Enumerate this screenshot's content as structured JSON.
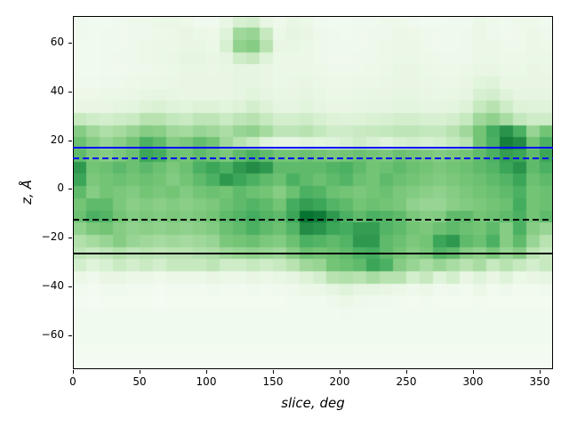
{
  "figure": {
    "background": "#ffffff"
  },
  "axes": {
    "xlabel": "slice, deg",
    "ylabel": "z, Å",
    "xlim": [
      0,
      360
    ],
    "ylim": [
      -74,
      71
    ],
    "xticks": [
      0,
      50,
      100,
      150,
      200,
      250,
      300,
      350
    ],
    "xtick_labels": [
      "0",
      "50",
      "100",
      "150",
      "200",
      "250",
      "300",
      "350"
    ],
    "yticks": [
      60,
      40,
      20,
      0,
      -20,
      -40,
      -60
    ],
    "ytick_labels": [
      "60",
      "40",
      "20",
      "0",
      "−20",
      "−40",
      "−60"
    ]
  },
  "chart_data": {
    "type": "heatmap",
    "title": "",
    "xlabel": "slice, deg",
    "ylabel": "z, Å",
    "colormap": "Greens",
    "grid": false,
    "legend": "none",
    "x_bins": 36,
    "x_range": [
      0,
      360
    ],
    "y_bins": 29,
    "y_range": [
      -74,
      71
    ],
    "values_note": "rows top(z=71) to bottom(z=-74), 36 columns x=0..360, normalized 0-1 intensity",
    "values": [
      [
        0.05,
        0.04,
        0.04,
        0.05,
        0.06,
        0.06,
        0.08,
        0.09,
        0.07,
        0.05,
        0.05,
        0.1,
        0.18,
        0.2,
        0.1,
        0.06,
        0.1,
        0.08,
        0.05,
        0.04,
        0.04,
        0.05,
        0.05,
        0.06,
        0.06,
        0.05,
        0.04,
        0.04,
        0.05,
        0.05,
        0.08,
        0.06,
        0.05,
        0.06,
        0.06,
        0.05
      ],
      [
        0.05,
        0.04,
        0.05,
        0.05,
        0.06,
        0.06,
        0.07,
        0.08,
        0.1,
        0.08,
        0.07,
        0.15,
        0.38,
        0.4,
        0.25,
        0.08,
        0.12,
        0.1,
        0.06,
        0.05,
        0.04,
        0.05,
        0.06,
        0.06,
        0.08,
        0.07,
        0.06,
        0.05,
        0.05,
        0.06,
        0.08,
        0.06,
        0.05,
        0.06,
        0.08,
        0.06
      ],
      [
        0.04,
        0.04,
        0.05,
        0.05,
        0.06,
        0.07,
        0.08,
        0.08,
        0.1,
        0.1,
        0.08,
        0.18,
        0.42,
        0.45,
        0.3,
        0.1,
        0.1,
        0.08,
        0.06,
        0.05,
        0.05,
        0.05,
        0.06,
        0.07,
        0.08,
        0.08,
        0.06,
        0.05,
        0.05,
        0.06,
        0.08,
        0.08,
        0.06,
        0.06,
        0.08,
        0.07
      ],
      [
        0.04,
        0.04,
        0.05,
        0.06,
        0.06,
        0.07,
        0.08,
        0.09,
        0.12,
        0.12,
        0.1,
        0.12,
        0.22,
        0.25,
        0.15,
        0.08,
        0.08,
        0.08,
        0.06,
        0.05,
        0.05,
        0.06,
        0.06,
        0.07,
        0.08,
        0.08,
        0.07,
        0.06,
        0.06,
        0.06,
        0.08,
        0.08,
        0.07,
        0.07,
        0.08,
        0.08
      ],
      [
        0.04,
        0.04,
        0.05,
        0.05,
        0.06,
        0.06,
        0.07,
        0.08,
        0.1,
        0.1,
        0.09,
        0.1,
        0.12,
        0.12,
        0.1,
        0.08,
        0.08,
        0.08,
        0.07,
        0.06,
        0.06,
        0.06,
        0.07,
        0.08,
        0.1,
        0.1,
        0.08,
        0.07,
        0.07,
        0.08,
        0.1,
        0.1,
        0.08,
        0.08,
        0.1,
        0.09
      ],
      [
        0.05,
        0.05,
        0.06,
        0.06,
        0.07,
        0.08,
        0.08,
        0.09,
        0.1,
        0.1,
        0.1,
        0.1,
        0.12,
        0.12,
        0.1,
        0.08,
        0.09,
        0.1,
        0.08,
        0.07,
        0.07,
        0.08,
        0.08,
        0.09,
        0.1,
        0.1,
        0.09,
        0.08,
        0.08,
        0.1,
        0.14,
        0.15,
        0.1,
        0.1,
        0.1,
        0.1
      ],
      [
        0.07,
        0.07,
        0.08,
        0.08,
        0.09,
        0.11,
        0.12,
        0.11,
        0.1,
        0.1,
        0.1,
        0.1,
        0.12,
        0.14,
        0.12,
        0.1,
        0.1,
        0.12,
        0.1,
        0.08,
        0.08,
        0.09,
        0.1,
        0.1,
        0.11,
        0.11,
        0.1,
        0.09,
        0.1,
        0.12,
        0.18,
        0.2,
        0.15,
        0.12,
        0.12,
        0.12
      ],
      [
        0.1,
        0.1,
        0.1,
        0.12,
        0.13,
        0.16,
        0.17,
        0.15,
        0.14,
        0.16,
        0.16,
        0.14,
        0.16,
        0.2,
        0.16,
        0.12,
        0.12,
        0.14,
        0.12,
        0.1,
        0.1,
        0.11,
        0.12,
        0.12,
        0.13,
        0.13,
        0.12,
        0.12,
        0.13,
        0.16,
        0.25,
        0.3,
        0.22,
        0.16,
        0.15,
        0.15
      ],
      [
        0.25,
        0.22,
        0.2,
        0.22,
        0.24,
        0.3,
        0.3,
        0.26,
        0.24,
        0.28,
        0.28,
        0.24,
        0.28,
        0.3,
        0.25,
        0.2,
        0.2,
        0.22,
        0.18,
        0.16,
        0.15,
        0.16,
        0.17,
        0.18,
        0.2,
        0.2,
        0.18,
        0.18,
        0.2,
        0.25,
        0.38,
        0.42,
        0.35,
        0.26,
        0.22,
        0.22
      ],
      [
        0.45,
        0.38,
        0.33,
        0.36,
        0.4,
        0.45,
        0.44,
        0.38,
        0.36,
        0.4,
        0.38,
        0.34,
        0.4,
        0.42,
        0.36,
        0.28,
        0.28,
        0.3,
        0.26,
        0.22,
        0.22,
        0.24,
        0.25,
        0.26,
        0.28,
        0.28,
        0.26,
        0.26,
        0.3,
        0.38,
        0.5,
        0.62,
        0.72,
        0.6,
        0.4,
        0.5
      ],
      [
        0.52,
        0.45,
        0.4,
        0.44,
        0.5,
        0.6,
        0.55,
        0.45,
        0.48,
        0.54,
        0.5,
        0.38,
        0.3,
        0.25,
        0.15,
        0.12,
        0.12,
        0.15,
        0.14,
        0.15,
        0.18,
        0.22,
        0.18,
        0.15,
        0.18,
        0.2,
        0.18,
        0.2,
        0.25,
        0.3,
        0.5,
        0.6,
        0.8,
        0.75,
        0.5,
        0.6
      ],
      [
        0.55,
        0.48,
        0.45,
        0.48,
        0.52,
        0.65,
        0.62,
        0.52,
        0.5,
        0.55,
        0.52,
        0.48,
        0.55,
        0.6,
        0.55,
        0.5,
        0.5,
        0.52,
        0.5,
        0.48,
        0.5,
        0.52,
        0.5,
        0.48,
        0.52,
        0.5,
        0.48,
        0.46,
        0.48,
        0.5,
        0.55,
        0.6,
        0.68,
        0.65,
        0.55,
        0.65
      ],
      [
        0.7,
        0.5,
        0.52,
        0.56,
        0.52,
        0.56,
        0.52,
        0.48,
        0.52,
        0.6,
        0.65,
        0.6,
        0.7,
        0.75,
        0.7,
        0.55,
        0.55,
        0.55,
        0.55,
        0.58,
        0.6,
        0.55,
        0.5,
        0.52,
        0.55,
        0.52,
        0.5,
        0.48,
        0.5,
        0.52,
        0.55,
        0.58,
        0.65,
        0.72,
        0.55,
        0.6
      ],
      [
        0.65,
        0.48,
        0.5,
        0.52,
        0.5,
        0.52,
        0.5,
        0.46,
        0.5,
        0.55,
        0.6,
        0.7,
        0.65,
        0.6,
        0.55,
        0.52,
        0.6,
        0.55,
        0.52,
        0.55,
        0.58,
        0.52,
        0.5,
        0.55,
        0.52,
        0.5,
        0.48,
        0.46,
        0.48,
        0.5,
        0.52,
        0.55,
        0.58,
        0.65,
        0.52,
        0.55
      ],
      [
        0.55,
        0.45,
        0.5,
        0.48,
        0.46,
        0.5,
        0.48,
        0.5,
        0.46,
        0.5,
        0.52,
        0.5,
        0.55,
        0.52,
        0.5,
        0.45,
        0.52,
        0.6,
        0.58,
        0.52,
        0.5,
        0.48,
        0.5,
        0.52,
        0.48,
        0.46,
        0.44,
        0.42,
        0.45,
        0.48,
        0.5,
        0.52,
        0.55,
        0.6,
        0.5,
        0.52
      ],
      [
        0.5,
        0.55,
        0.55,
        0.48,
        0.44,
        0.46,
        0.44,
        0.46,
        0.44,
        0.46,
        0.48,
        0.52,
        0.55,
        0.58,
        0.55,
        0.5,
        0.62,
        0.68,
        0.65,
        0.58,
        0.55,
        0.5,
        0.52,
        0.5,
        0.48,
        0.42,
        0.4,
        0.4,
        0.44,
        0.46,
        0.48,
        0.5,
        0.52,
        0.62,
        0.5,
        0.52
      ],
      [
        0.52,
        0.6,
        0.58,
        0.5,
        0.46,
        0.48,
        0.46,
        0.48,
        0.46,
        0.48,
        0.5,
        0.55,
        0.58,
        0.62,
        0.58,
        0.55,
        0.65,
        0.85,
        0.82,
        0.7,
        0.6,
        0.55,
        0.6,
        0.58,
        0.55,
        0.48,
        0.45,
        0.46,
        0.55,
        0.55,
        0.5,
        0.52,
        0.55,
        0.6,
        0.5,
        0.55
      ],
      [
        0.42,
        0.48,
        0.5,
        0.45,
        0.42,
        0.44,
        0.42,
        0.44,
        0.42,
        0.44,
        0.46,
        0.52,
        0.55,
        0.6,
        0.55,
        0.52,
        0.58,
        0.75,
        0.72,
        0.65,
        0.62,
        0.68,
        0.68,
        0.58,
        0.55,
        0.5,
        0.48,
        0.52,
        0.55,
        0.52,
        0.5,
        0.55,
        0.45,
        0.6,
        0.45,
        0.4
      ],
      [
        0.32,
        0.36,
        0.4,
        0.45,
        0.4,
        0.38,
        0.36,
        0.38,
        0.36,
        0.38,
        0.4,
        0.48,
        0.5,
        0.52,
        0.48,
        0.46,
        0.52,
        0.6,
        0.58,
        0.55,
        0.58,
        0.7,
        0.7,
        0.55,
        0.52,
        0.48,
        0.5,
        0.65,
        0.7,
        0.55,
        0.52,
        0.6,
        0.45,
        0.55,
        0.4,
        0.3
      ],
      [
        0.28,
        0.25,
        0.28,
        0.32,
        0.28,
        0.3,
        0.28,
        0.3,
        0.3,
        0.32,
        0.34,
        0.38,
        0.4,
        0.42,
        0.4,
        0.38,
        0.45,
        0.52,
        0.5,
        0.52,
        0.55,
        0.6,
        0.62,
        0.55,
        0.5,
        0.45,
        0.48,
        0.58,
        0.55,
        0.45,
        0.42,
        0.48,
        0.4,
        0.45,
        0.3,
        0.25
      ],
      [
        0.2,
        0.15,
        0.18,
        0.24,
        0.2,
        0.24,
        0.2,
        0.25,
        0.25,
        0.25,
        0.28,
        0.22,
        0.22,
        0.25,
        0.22,
        0.25,
        0.3,
        0.38,
        0.4,
        0.5,
        0.52,
        0.55,
        0.65,
        0.6,
        0.45,
        0.4,
        0.35,
        0.4,
        0.35,
        0.3,
        0.35,
        0.25,
        0.3,
        0.25,
        0.2,
        0.25
      ],
      [
        0.08,
        0.06,
        0.1,
        0.1,
        0.08,
        0.08,
        0.06,
        0.08,
        0.08,
        0.08,
        0.1,
        0.08,
        0.08,
        0.1,
        0.08,
        0.1,
        0.12,
        0.16,
        0.2,
        0.3,
        0.32,
        0.3,
        0.35,
        0.3,
        0.3,
        0.2,
        0.25,
        0.15,
        0.2,
        0.1,
        0.15,
        0.1,
        0.15,
        0.08,
        0.1,
        0.12
      ],
      [
        0.04,
        0.03,
        0.05,
        0.05,
        0.04,
        0.04,
        0.03,
        0.04,
        0.04,
        0.04,
        0.05,
        0.04,
        0.04,
        0.05,
        0.04,
        0.05,
        0.06,
        0.08,
        0.08,
        0.12,
        0.15,
        0.12,
        0.12,
        0.1,
        0.08,
        0.06,
        0.08,
        0.05,
        0.06,
        0.04,
        0.08,
        0.04,
        0.06,
        0.04,
        0.04,
        0.05
      ],
      [
        0.03,
        0.02,
        0.03,
        0.03,
        0.03,
        0.03,
        0.02,
        0.03,
        0.03,
        0.03,
        0.03,
        0.03,
        0.03,
        0.03,
        0.03,
        0.03,
        0.04,
        0.04,
        0.04,
        0.06,
        0.08,
        0.06,
        0.05,
        0.05,
        0.04,
        0.03,
        0.04,
        0.03,
        0.03,
        0.03,
        0.04,
        0.03,
        0.03,
        0.03,
        0.03,
        0.03
      ],
      [
        0.04,
        0.04,
        0.04,
        0.04,
        0.04,
        0.04,
        0.04,
        0.04,
        0.04,
        0.04,
        0.04,
        0.04,
        0.04,
        0.04,
        0.04,
        0.04,
        0.04,
        0.04,
        0.04,
        0.04,
        0.05,
        0.04,
        0.04,
        0.04,
        0.04,
        0.04,
        0.04,
        0.04,
        0.04,
        0.04,
        0.04,
        0.04,
        0.04,
        0.04,
        0.04,
        0.04
      ],
      [
        0.04,
        0.04,
        0.04,
        0.04,
        0.04,
        0.04,
        0.04,
        0.04,
        0.04,
        0.04,
        0.04,
        0.04,
        0.04,
        0.04,
        0.04,
        0.04,
        0.04,
        0.04,
        0.04,
        0.04,
        0.04,
        0.04,
        0.04,
        0.04,
        0.04,
        0.04,
        0.04,
        0.04,
        0.04,
        0.04,
        0.04,
        0.04,
        0.04,
        0.04,
        0.04,
        0.04
      ],
      [
        0.04,
        0.04,
        0.04,
        0.04,
        0.04,
        0.04,
        0.04,
        0.04,
        0.04,
        0.04,
        0.04,
        0.04,
        0.04,
        0.04,
        0.04,
        0.04,
        0.04,
        0.04,
        0.04,
        0.04,
        0.04,
        0.04,
        0.04,
        0.04,
        0.04,
        0.04,
        0.04,
        0.04,
        0.04,
        0.04,
        0.04,
        0.04,
        0.04,
        0.04,
        0.04,
        0.04
      ],
      [
        0.03,
        0.03,
        0.03,
        0.03,
        0.03,
        0.03,
        0.03,
        0.03,
        0.03,
        0.03,
        0.03,
        0.03,
        0.03,
        0.03,
        0.03,
        0.03,
        0.03,
        0.03,
        0.03,
        0.03,
        0.03,
        0.03,
        0.03,
        0.03,
        0.03,
        0.03,
        0.03,
        0.03,
        0.03,
        0.03,
        0.03,
        0.03,
        0.03,
        0.03,
        0.03,
        0.03
      ],
      [
        0.02,
        0.02,
        0.02,
        0.02,
        0.02,
        0.02,
        0.02,
        0.02,
        0.02,
        0.02,
        0.02,
        0.02,
        0.02,
        0.02,
        0.02,
        0.02,
        0.02,
        0.02,
        0.02,
        0.02,
        0.02,
        0.02,
        0.02,
        0.02,
        0.02,
        0.02,
        0.02,
        0.02,
        0.02,
        0.02,
        0.02,
        0.02,
        0.02,
        0.02,
        0.02,
        0.02
      ]
    ],
    "cmap_stops": [
      "#f7fcf5",
      "#e5f5e0",
      "#c7e9c0",
      "#a1d99b",
      "#74c476",
      "#41ab5d",
      "#238b45",
      "#006d2c",
      "#00441b"
    ],
    "overlay_lines": [
      {
        "name": "blue-solid-line",
        "z": 17.0,
        "color": "#0000ff",
        "style": "solid"
      },
      {
        "name": "blue-dashed-line",
        "z": 12.4,
        "color": "#0000ff",
        "style": "dashed"
      },
      {
        "name": "black-dashed-line",
        "z": -12.5,
        "color": "#000000",
        "style": "dashed"
      },
      {
        "name": "black-solid-line",
        "z": -26.5,
        "color": "#000000",
        "style": "solid"
      }
    ]
  }
}
